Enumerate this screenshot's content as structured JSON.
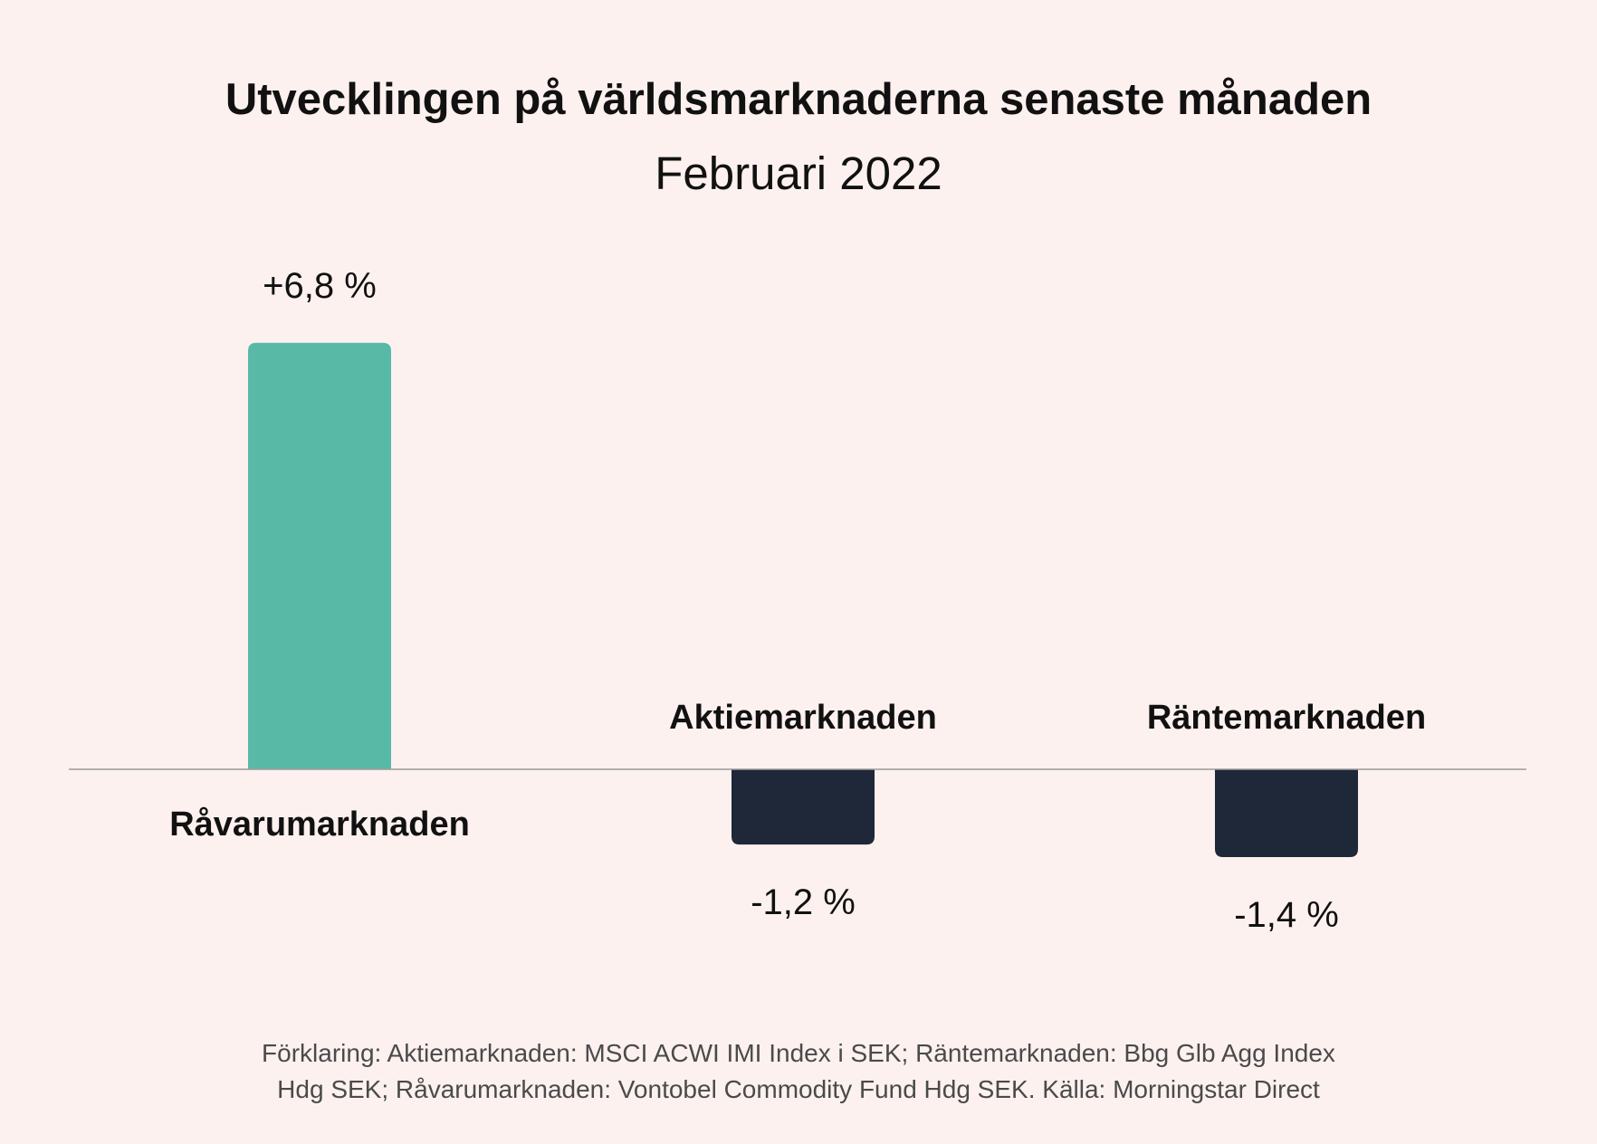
{
  "title": "Utvecklingen på världsmarknaderna senaste månaden",
  "subtitle": "Februari 2022",
  "footnote_line1": "Förklaring: Aktiemarknaden: MSCI ACWI IMI Index i SEK; Räntemarknaden: Bbg Glb Agg Index",
  "footnote_line2": "Hdg SEK; Råvarumarknaden: Vontobel Commodity Fund Hdg SEK. Källa: Morningstar Direct",
  "colors": {
    "positive": "#58baa6",
    "negative": "#1e2838",
    "axis": "#9a9a9a",
    "background": "#fdf1ef"
  },
  "chart_data": {
    "type": "bar",
    "categories": [
      "Råvarumarknaden",
      "Aktiemarknaden",
      "Räntemarknaden"
    ],
    "values": [
      6.8,
      -1.2,
      -1.4
    ],
    "value_labels": [
      "+6,8 %",
      "-1,2 %",
      "-1,4 %"
    ],
    "unit": "%",
    "ylim": [
      -1.4,
      6.8
    ],
    "grid": false,
    "legend": "none"
  }
}
